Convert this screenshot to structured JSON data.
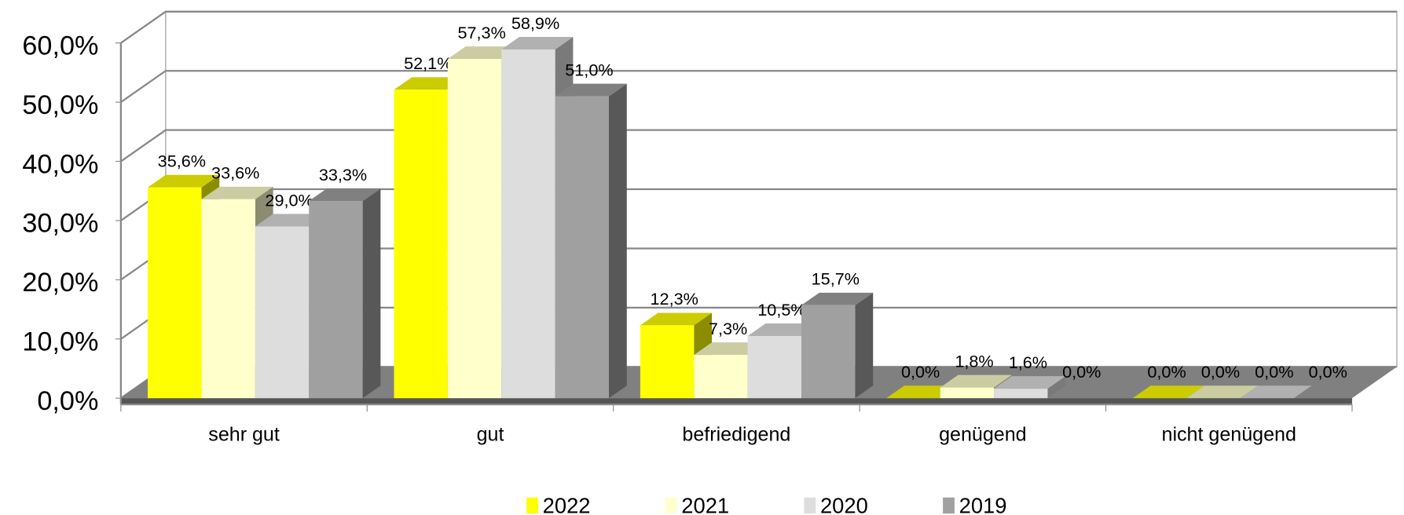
{
  "chart_data": {
    "type": "bar3d",
    "categories": [
      "sehr gut",
      "gut",
      "befriedigend",
      "genügend",
      "nicht genügend"
    ],
    "series": [
      {
        "name": "2022",
        "color": "#ffff00",
        "values": [
          35.6,
          52.1,
          12.3,
          0,
          0
        ],
        "value_labels": [
          "35,6%",
          "52,1%",
          "12,3%",
          "0,0%",
          "0,0%"
        ]
      },
      {
        "name": "2021",
        "color": "#ffffcc",
        "values": [
          33.6,
          57.3,
          7.3,
          1.8,
          0
        ],
        "value_labels": [
          "33,6%",
          "57,3%",
          "7,3%",
          "1,8%",
          "0,0%"
        ]
      },
      {
        "name": "2020",
        "color": "#dddddd",
        "values": [
          29.0,
          58.9,
          10.5,
          1.6,
          0
        ],
        "value_labels": [
          "29,0%",
          "58,9%",
          "10,5%",
          "1,6%",
          "0,0%"
        ]
      },
      {
        "name": "2019",
        "color": "#a0a0a0",
        "values": [
          33.3,
          51.0,
          15.7,
          0,
          0
        ],
        "value_labels": [
          "33,3%",
          "51,0%",
          "15,7%",
          "0,0%",
          "0,0%"
        ]
      }
    ],
    "ylim": [
      0,
      60
    ],
    "yticks": [
      {
        "value": 0,
        "label": "0,0%"
      },
      {
        "value": 10,
        "label": "10,0%"
      },
      {
        "value": 20,
        "label": "20,0%"
      },
      {
        "value": 30,
        "label": "30,0%"
      },
      {
        "value": 40,
        "label": "40,0%"
      },
      {
        "value": 50,
        "label": "50,0%"
      },
      {
        "value": 60,
        "label": "60,0%"
      }
    ],
    "grid": true,
    "legend": "bottom"
  }
}
